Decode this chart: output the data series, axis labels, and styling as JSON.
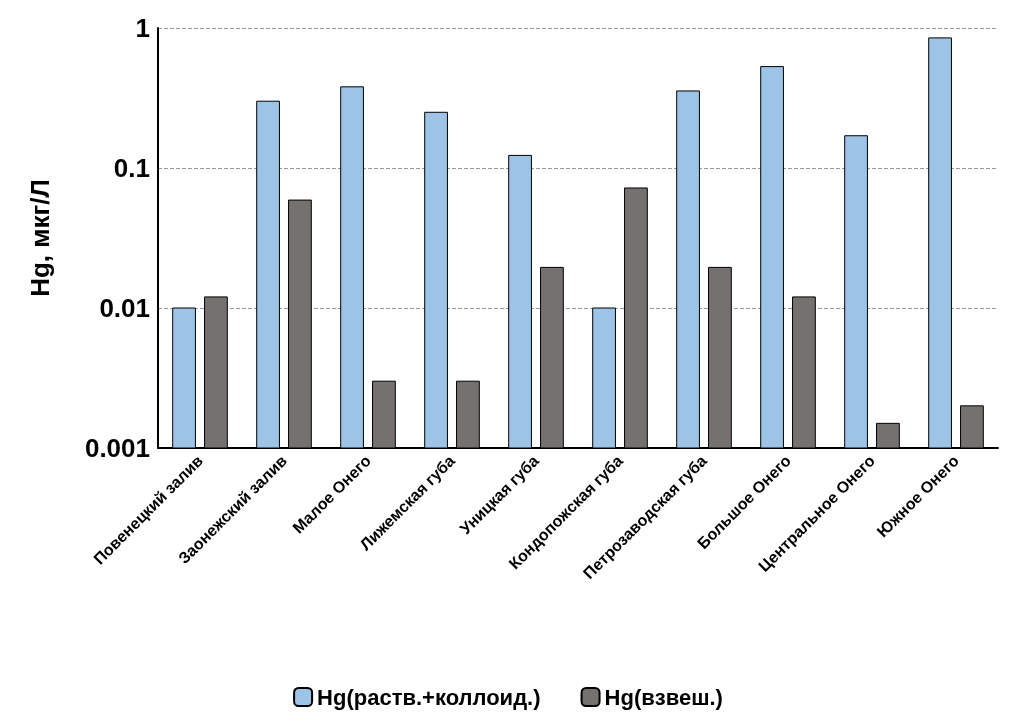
{
  "chart_data": {
    "type": "bar",
    "ylabel": "Hg, мкг/Л",
    "categories": [
      "Повенецкий залив",
      "Заонежский залив",
      "Малое Онего",
      "Лижемская губа",
      "Уницкая губа",
      "Кондопожская губа",
      "Петрозаводская губа",
      "Большое Онего",
      "Центральное Онего",
      "Южное Онего"
    ],
    "series": [
      {
        "name": "Hg(раств.+коллоид.)",
        "color": "#9dc3e6",
        "values": [
          0.01,
          0.3,
          0.38,
          0.25,
          0.123,
          0.01,
          0.355,
          0.53,
          0.17,
          0.85
        ]
      },
      {
        "name": "Hg(взвеш.)",
        "color": "#767171",
        "values": [
          0.012,
          0.059,
          0.003,
          0.003,
          0.0195,
          0.072,
          0.0195,
          0.012,
          0.0015,
          0.002
        ]
      }
    ],
    "log": "y",
    "ylim": [
      0.001,
      1
    ],
    "yticks": [
      0.001,
      0.01,
      0.1,
      1
    ],
    "grid": "y",
    "legend": "bottom"
  }
}
